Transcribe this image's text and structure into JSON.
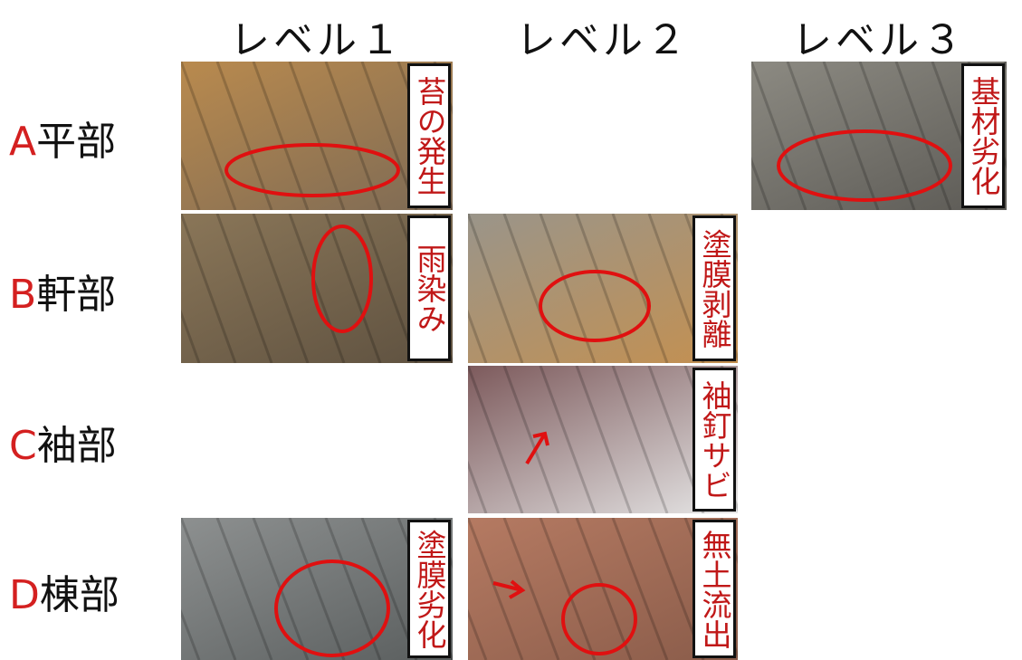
{
  "columns": [
    "レベル１",
    "レベル２",
    "レベル３"
  ],
  "rows": [
    {
      "letter": "A",
      "part": "平部",
      "cells": [
        "苔の発生",
        null,
        "基材劣化"
      ]
    },
    {
      "letter": "B",
      "part": "軒部",
      "cells": [
        "雨染み",
        "塗膜剥離",
        null
      ]
    },
    {
      "letter": "C",
      "part": "袖部",
      "cells": [
        null,
        "袖釘サビ",
        null
      ]
    },
    {
      "letter": "D",
      "part": "棟部",
      "cells": [
        "塗膜劣化",
        "無土流出",
        null
      ]
    }
  ]
}
